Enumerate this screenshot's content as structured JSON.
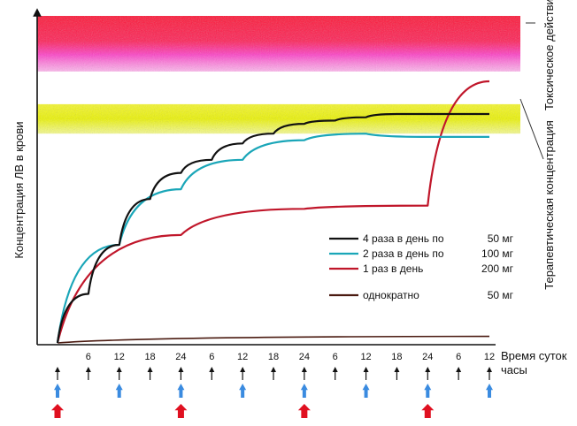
{
  "chart_data": {
    "type": "line",
    "title": "",
    "ylabel": "Концентрация ЛВ в крови",
    "xlabel": "Время суток",
    "xlabel_unit": "часы",
    "x_tick_labels": [
      "6",
      "12",
      "18",
      "24",
      "6",
      "12",
      "18",
      "24",
      "6",
      "12",
      "18",
      "24",
      "6",
      "12"
    ],
    "x_range_hours": [
      0,
      84
    ],
    "y_range": [
      0,
      100
    ],
    "zones": [
      {
        "name": "toxic",
        "label": "Токсическое действие",
        "y_range": [
          83,
          100
        ],
        "color": "#ff0a3c"
      },
      {
        "name": "therapeutic",
        "label": "Терапевтическая концентрация",
        "y_range": [
          64,
          73
        ],
        "color": "#f2f200"
      }
    ],
    "legend": [
      {
        "label": "4 раза в день по",
        "dose": "50 мг",
        "color": "#111111"
      },
      {
        "label": "2 раза в день по",
        "dose": "100 мг",
        "color": "#1aa6b8"
      },
      {
        "label": "1 раз в день",
        "dose": "200 мг",
        "color": "#c0162a"
      },
      {
        "label": "однократно",
        "dose": "50 мг",
        "color": "#4a1a10"
      }
    ],
    "series": [
      {
        "name": "4 раза в день по 50 мг",
        "color": "#111111",
        "x": [
          0,
          6,
          6.01,
          12,
          12.01,
          18,
          18.01,
          24,
          24.01,
          30,
          30.01,
          36,
          36.01,
          42,
          42.01,
          48,
          48.01,
          54,
          54.01,
          60,
          60.01,
          66,
          66.01,
          72,
          72.01,
          78,
          78.01,
          84
        ],
        "y": [
          0,
          15,
          15,
          30,
          30,
          44,
          44,
          52,
          52,
          56,
          56,
          61,
          61,
          64,
          64,
          67,
          67,
          68,
          68,
          69,
          69,
          70,
          70,
          70,
          70,
          70,
          70,
          70
        ]
      },
      {
        "name": "2 раза в день по 100 мг",
        "color": "#1aa6b8",
        "x": [
          0,
          12,
          12.01,
          24,
          24.01,
          36,
          36.01,
          48,
          48.01,
          60,
          60.01,
          72,
          72.01,
          84
        ],
        "y": [
          0,
          30,
          30,
          47,
          47,
          56,
          56,
          62,
          62,
          64,
          64,
          63,
          63,
          63
        ]
      },
      {
        "name": "1 раз в день 200 мг",
        "color": "#c0162a",
        "x": [
          0,
          24,
          24.01,
          48,
          48.01,
          72,
          72.01,
          84
        ],
        "y": [
          0,
          33,
          33,
          41,
          41,
          42,
          42,
          80
        ]
      },
      {
        "name": "однократно 50 мг",
        "color": "#4a1a10",
        "x": [
          0,
          84
        ],
        "y": [
          0,
          2
        ]
      }
    ],
    "dosing_arrows": [
      {
        "kind": "4x",
        "times": [
          0,
          6,
          12,
          18,
          24,
          30,
          36,
          42,
          48,
          54,
          60,
          66,
          72,
          78,
          84
        ],
        "color": "#111111"
      },
      {
        "kind": "2x",
        "times": [
          0,
          12,
          24,
          36,
          48,
          60,
          72,
          84
        ],
        "color": "#3a8be0"
      },
      {
        "kind": "1x",
        "times": [
          0,
          24,
          48,
          72
        ],
        "color": "#e01020"
      }
    ]
  }
}
